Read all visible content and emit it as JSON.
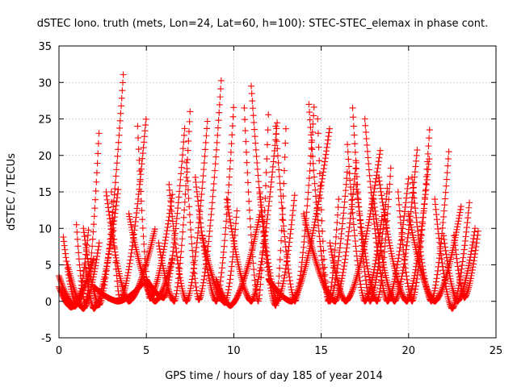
{
  "chart_data": {
    "type": "scatter",
    "title": "dSTEC Iono. truth (mets, Lon=24, Lat=60, h=100): STEC-STEC_elemax in phase cont.",
    "xlabel": "GPS time / hours of day 185 of year 2014",
    "ylabel": "dSTEC  / TECUs",
    "xlim": [
      0,
      25
    ],
    "ylim": [
      -5,
      35
    ],
    "xticks": [
      "0",
      "5",
      "10",
      "15",
      "20",
      "25"
    ],
    "yticks": [
      "-5",
      "0",
      "5",
      "10",
      "15",
      "20",
      "25",
      "30",
      "35"
    ],
    "grid": true,
    "marker": "+",
    "color": "#ff0000",
    "passes": [
      {
        "tmin": 0.0,
        "tmax": 1.2,
        "tc": 0.9,
        "peak": -0.7,
        "left": 3.5,
        "right": 0.5
      },
      {
        "tmin": 0.25,
        "tmax": 1.7,
        "tc": 1.0,
        "peak": -0.5,
        "left": 8.8,
        "right": 10.0
      },
      {
        "tmin": 0.0,
        "tmax": 2.0,
        "tc": 0.7,
        "peak": -0.8,
        "left": 2.0,
        "right": 6.0
      },
      {
        "tmin": 0.5,
        "tmax": 2.3,
        "tc": 1.4,
        "peak": -1.0,
        "left": 5.0,
        "right": 8.0
      },
      {
        "tmin": 1.0,
        "tmax": 2.3,
        "tc": 1.5,
        "peak": -0.3,
        "left": 10.5,
        "right": 23.5
      },
      {
        "tmin": 1.5,
        "tmax": 3.4,
        "tc": 2.0,
        "peak": -1.0,
        "left": 5.0,
        "right": 15.5
      },
      {
        "tmin": 1.4,
        "tmax": 3.7,
        "tc": 2.3,
        "peak": -0.5,
        "left": 10.0,
        "right": 31.8
      },
      {
        "tmin": 2.0,
        "tmax": 4.8,
        "tc": 3.4,
        "peak": 0.0,
        "left": 2.0,
        "right": 2.5
      },
      {
        "tmin": 3.0,
        "tmax": 5.0,
        "tc": 3.5,
        "peak": 0.1,
        "left": 15.0,
        "right": 25.5
      },
      {
        "tmin": 2.7,
        "tmax": 5.5,
        "tc": 4.0,
        "peak": 0.0,
        "left": 15.0,
        "right": 10.0
      },
      {
        "tmin": 4.5,
        "tmax": 6.5,
        "tc": 5.2,
        "peak": 0.4,
        "left": 24.0,
        "right": 15.0
      },
      {
        "tmin": 4.0,
        "tmax": 6.5,
        "tc": 5.5,
        "peak": 0.0,
        "left": 12.0,
        "right": 6.0
      },
      {
        "tmin": 5.0,
        "tmax": 7.2,
        "tc": 6.0,
        "peak": 0.5,
        "left": 3.0,
        "right": 24.0
      },
      {
        "tmin": 5.7,
        "tmax": 7.5,
        "tc": 6.6,
        "peak": 0.0,
        "left": 8.0,
        "right": 26.0
      },
      {
        "tmin": 6.3,
        "tmax": 8.5,
        "tc": 7.3,
        "peak": 0.0,
        "left": 16.0,
        "right": 25.0
      },
      {
        "tmin": 7.3,
        "tmax": 9.3,
        "tc": 8.0,
        "peak": 0.2,
        "left": 19.0,
        "right": 31.0
      },
      {
        "tmin": 7.8,
        "tmax": 10.0,
        "tc": 9.0,
        "peak": 0.0,
        "left": 17.0,
        "right": 27.0
      },
      {
        "tmin": 8.2,
        "tmax": 10.2,
        "tc": 9.5,
        "peak": -0.2,
        "left": 9.0,
        "right": 13.0
      },
      {
        "tmin": 9.0,
        "tmax": 11.5,
        "tc": 9.8,
        "peak": -0.6,
        "left": 3.0,
        "right": 12.0
      },
      {
        "tmin": 9.6,
        "tmax": 12.5,
        "tc": 11.0,
        "peak": 0.0,
        "left": 14.0,
        "right": 25.0
      },
      {
        "tmin": 10.6,
        "tmax": 12.0,
        "tc": 11.4,
        "peak": 0.0,
        "left": 26.5,
        "right": 27.0
      },
      {
        "tmin": 11.0,
        "tmax": 13.0,
        "tc": 12.4,
        "peak": -0.6,
        "left": 29.5,
        "right": 25.0
      },
      {
        "tmin": 11.5,
        "tmax": 13.5,
        "tc": 12.5,
        "peak": 0.0,
        "left": 15.0,
        "right": 15.0
      },
      {
        "tmin": 12.0,
        "tmax": 15.5,
        "tc": 13.3,
        "peak": 0.0,
        "left": 3.0,
        "right": 24.0
      },
      {
        "tmin": 12.4,
        "tmax": 14.6,
        "tc": 13.5,
        "peak": 0.0,
        "left": 24.0,
        "right": 27.0
      },
      {
        "tmin": 14.3,
        "tmax": 16.5,
        "tc": 15.5,
        "peak": 0.0,
        "left": 27.0,
        "right": 18.0
      },
      {
        "tmin": 14.8,
        "tmax": 16.0,
        "tc": 15.4,
        "peak": 0.0,
        "left": 25.0,
        "right": 14.0
      },
      {
        "tmin": 14.0,
        "tmax": 17.0,
        "tc": 15.8,
        "peak": 0.0,
        "left": 12.0,
        "right": 19.0
      },
      {
        "tmin": 15.5,
        "tmax": 18.4,
        "tc": 16.4,
        "peak": 0.0,
        "left": 8.0,
        "right": 21.0
      },
      {
        "tmin": 16.5,
        "tmax": 18.5,
        "tc": 17.5,
        "peak": 0.0,
        "left": 21.5,
        "right": 12.0
      },
      {
        "tmin": 16.8,
        "tmax": 18.8,
        "tc": 17.8,
        "peak": 0.0,
        "left": 26.5,
        "right": 16.0
      },
      {
        "tmin": 17.0,
        "tmax": 19.0,
        "tc": 18.2,
        "peak": 0.0,
        "left": 16.0,
        "right": 19.0
      },
      {
        "tmin": 17.5,
        "tmax": 20.0,
        "tc": 18.8,
        "peak": 0.0,
        "left": 25.0,
        "right": 17.0
      },
      {
        "tmin": 18.0,
        "tmax": 20.5,
        "tc": 19.2,
        "peak": 0.0,
        "left": 14.0,
        "right": 21.0
      },
      {
        "tmin": 18.3,
        "tmax": 21.2,
        "tc": 19.9,
        "peak": 0.0,
        "left": 17.0,
        "right": 20.0
      },
      {
        "tmin": 19.4,
        "tmax": 21.2,
        "tc": 20.2,
        "peak": 0.0,
        "left": 15.0,
        "right": 23.5
      },
      {
        "tmin": 20.2,
        "tmax": 22.3,
        "tc": 21.3,
        "peak": 0.0,
        "left": 17.0,
        "right": 20.5
      },
      {
        "tmin": 20.0,
        "tmax": 23.0,
        "tc": 21.5,
        "peak": 0.0,
        "left": 12.0,
        "right": 13.0
      },
      {
        "tmin": 21.5,
        "tmax": 23.5,
        "tc": 22.5,
        "peak": -1.0,
        "left": 14.0,
        "right": 14.0
      },
      {
        "tmin": 22.0,
        "tmax": 23.8,
        "tc": 22.8,
        "peak": 0.0,
        "left": 9.0,
        "right": 10.0
      },
      {
        "tmin": 22.6,
        "tmax": 24.0,
        "tc": 23.2,
        "peak": 0.5,
        "left": 9.0,
        "right": 10.0
      }
    ]
  }
}
